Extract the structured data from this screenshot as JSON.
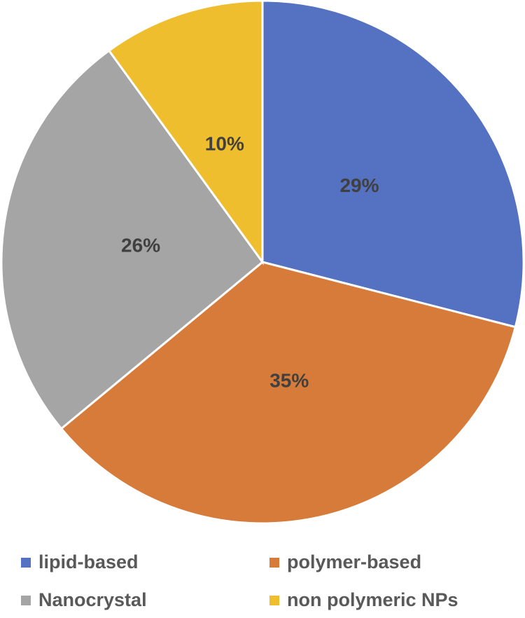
{
  "chart_data": {
    "type": "pie",
    "categories": [
      "lipid-based",
      "polymer-based",
      "Nanocrystal",
      "non polymeric NPs"
    ],
    "values": [
      29,
      35,
      26,
      10
    ],
    "value_labels": [
      "29%",
      "35%",
      "26%",
      "10%"
    ],
    "colors": [
      "#5571c1",
      "#d67b39",
      "#a5a5a5",
      "#efbe2e"
    ]
  }
}
